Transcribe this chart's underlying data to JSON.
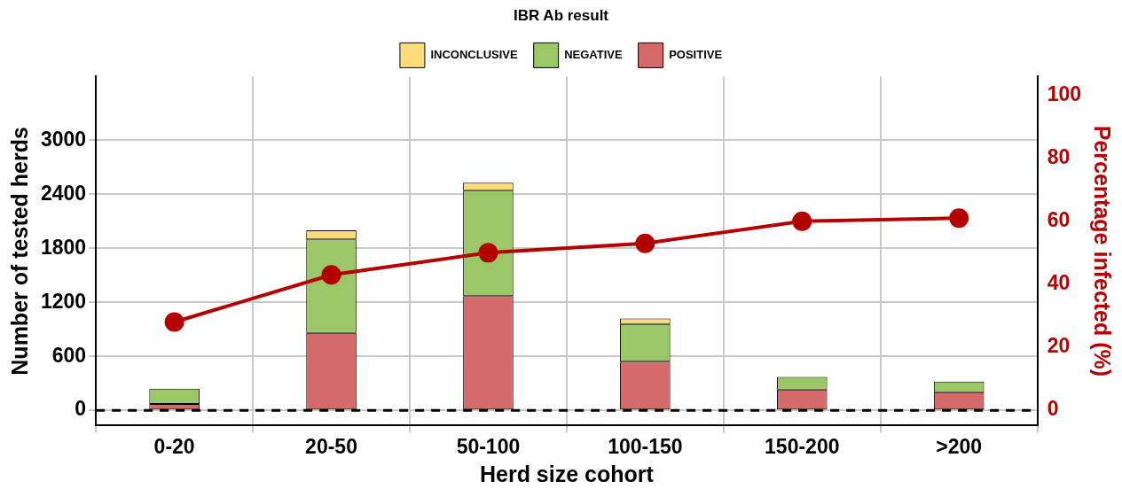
{
  "chart_data": {
    "type": "bar",
    "xlabel": "Herd size cohort",
    "ylabel": "Number of tested herds",
    "y2label": "Percentage infected (%)",
    "legend_title": "IBR Ab result",
    "categories": [
      "0-20",
      "20-50",
      "50-100",
      "100-150",
      "150-200",
      ">200"
    ],
    "stacked": true,
    "series": [
      {
        "name": "POSITIVE",
        "color": "#d46a6a",
        "values": [
          70,
          860,
          1270,
          540,
          230,
          200
        ]
      },
      {
        "name": "NEGATIVE",
        "color": "#9cc766",
        "values": [
          170,
          1040,
          1170,
          420,
          140,
          120
        ]
      },
      {
        "name": "INCONCLUSIVE",
        "color": "#fedd78",
        "values": [
          null,
          100,
          90,
          60,
          null,
          null
        ]
      },
      {
        "type": "line",
        "axis": "y2",
        "color": "#b30000",
        "values": [
          28,
          43,
          50,
          53,
          60,
          61
        ]
      }
    ],
    "ylim": [
      -170,
      3710
    ],
    "yticks": [
      0,
      600,
      1200,
      1800,
      2400,
      3000
    ],
    "y2lim": [
      -4.9,
      106
    ],
    "y2ticks": [
      0,
      20,
      40,
      60,
      80,
      100
    ],
    "ref_lines": [
      {
        "axis": "y",
        "value": 0,
        "color": "#000000",
        "line_style": "dashed"
      }
    ],
    "grid": true,
    "legend": "top",
    "marker": "circle",
    "line_style": "solid"
  }
}
